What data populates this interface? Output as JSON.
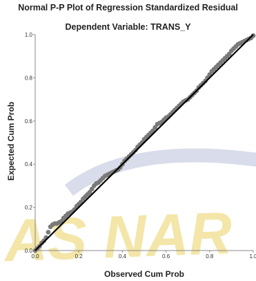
{
  "chart_data": {
    "type": "scatter",
    "title": "Normal P-P Plot of Regression Standardized Residual",
    "subtitle": "Dependent Variable: TRANS_Y",
    "xlabel": "Observed Cum Prob",
    "ylabel": "Expected Cum Prob",
    "xlim": [
      0.0,
      1.0
    ],
    "ylim": [
      0.0,
      1.0
    ],
    "x_ticks": [
      "0.0",
      "0.2",
      "0.4",
      "0.6",
      "0.8",
      "1.0"
    ],
    "y_ticks": [
      "0.0",
      "0.2",
      "0.4",
      "0.6",
      "0.8",
      "1.0"
    ],
    "grid": false,
    "reference_line": {
      "from": [
        0.0,
        0.0
      ],
      "to": [
        1.0,
        1.0
      ]
    },
    "series": [
      {
        "x": [
          0.0,
          0.01,
          0.02,
          0.03,
          0.04,
          0.05,
          0.06,
          0.07,
          0.08,
          0.09,
          0.1,
          0.11,
          0.12,
          0.13,
          0.14,
          0.15,
          0.16,
          0.17,
          0.18,
          0.19,
          0.2,
          0.21,
          0.22,
          0.23,
          0.24,
          0.25,
          0.26,
          0.27,
          0.28,
          0.29,
          0.3,
          0.31,
          0.32,
          0.33,
          0.34,
          0.35,
          0.36,
          0.37,
          0.38,
          0.39,
          0.4,
          0.41,
          0.42,
          0.43,
          0.44,
          0.45,
          0.46,
          0.47,
          0.48,
          0.49,
          0.5,
          0.51,
          0.52,
          0.53,
          0.54,
          0.55,
          0.56,
          0.57,
          0.58,
          0.59,
          0.6,
          0.61,
          0.62,
          0.63,
          0.64,
          0.65,
          0.66,
          0.67,
          0.68,
          0.69,
          0.7,
          0.71,
          0.72,
          0.73,
          0.74,
          0.75,
          0.76,
          0.77,
          0.78,
          0.79,
          0.8,
          0.81,
          0.82,
          0.83,
          0.84,
          0.85,
          0.86,
          0.87,
          0.88,
          0.89,
          0.9,
          0.91,
          0.92,
          0.93,
          0.94,
          0.95,
          0.96,
          0.97,
          0.98,
          0.99,
          1.0
        ],
        "y": [
          0.0,
          0.01,
          0.02,
          0.035,
          0.045,
          0.06,
          0.085,
          0.11,
          0.12,
          0.125,
          0.125,
          0.13,
          0.135,
          0.15,
          0.16,
          0.17,
          0.175,
          0.18,
          0.19,
          0.205,
          0.215,
          0.225,
          0.24,
          0.25,
          0.26,
          0.27,
          0.285,
          0.3,
          0.31,
          0.315,
          0.325,
          0.335,
          0.345,
          0.35,
          0.355,
          0.36,
          0.365,
          0.37,
          0.375,
          0.385,
          0.4,
          0.415,
          0.425,
          0.435,
          0.445,
          0.455,
          0.465,
          0.48,
          0.49,
          0.5,
          0.515,
          0.525,
          0.535,
          0.545,
          0.555,
          0.57,
          0.585,
          0.59,
          0.595,
          0.605,
          0.615,
          0.62,
          0.63,
          0.64,
          0.65,
          0.66,
          0.67,
          0.68,
          0.69,
          0.695,
          0.7,
          0.71,
          0.72,
          0.73,
          0.74,
          0.755,
          0.765,
          0.775,
          0.785,
          0.8,
          0.815,
          0.83,
          0.84,
          0.85,
          0.86,
          0.87,
          0.88,
          0.89,
          0.9,
          0.91,
          0.925,
          0.935,
          0.945,
          0.955,
          0.96,
          0.965,
          0.97,
          0.975,
          0.98,
          0.985,
          0.995
        ]
      }
    ]
  },
  "watermark": {
    "text": "AS NAR",
    "color": "#f3e6a8",
    "ring_color": "#d9dcea"
  },
  "colors": {
    "points": "#7a7a7a",
    "line": "#000000",
    "axis": "#888888"
  }
}
